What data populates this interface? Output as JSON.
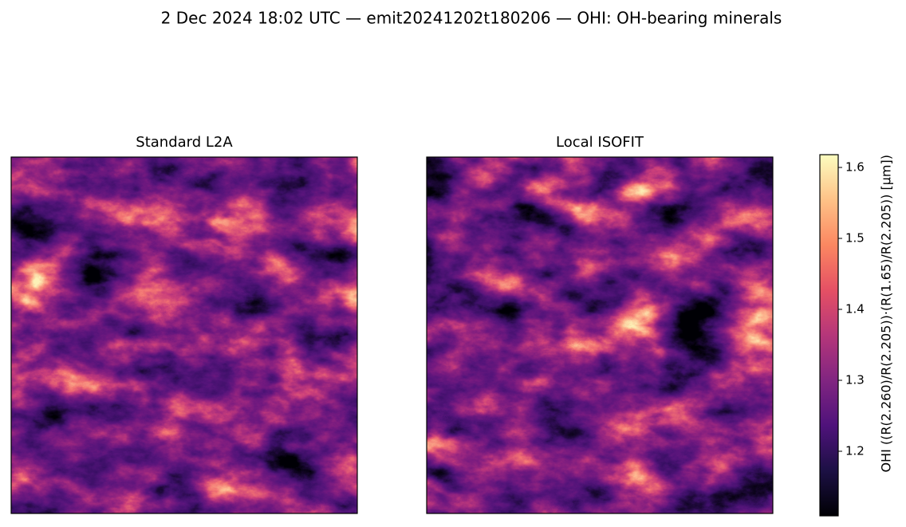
{
  "chart_data": {
    "type": "colorbar",
    "title": "2 Dec 2024 18:02 UTC — emit20241202t180206 — OHI: OH-bearing minerals",
    "panels": [
      "Standard L2A",
      "Local ISOFIT"
    ],
    "colormap": "magma",
    "label": "OHI  ((R(2.260)/R(2.205))·(R(1.65)/R(2.205))  [µm])",
    "ylim": [
      1.109,
      1.618
    ],
    "yticks": [
      1.2,
      1.3,
      1.4,
      1.5,
      1.6
    ]
  }
}
